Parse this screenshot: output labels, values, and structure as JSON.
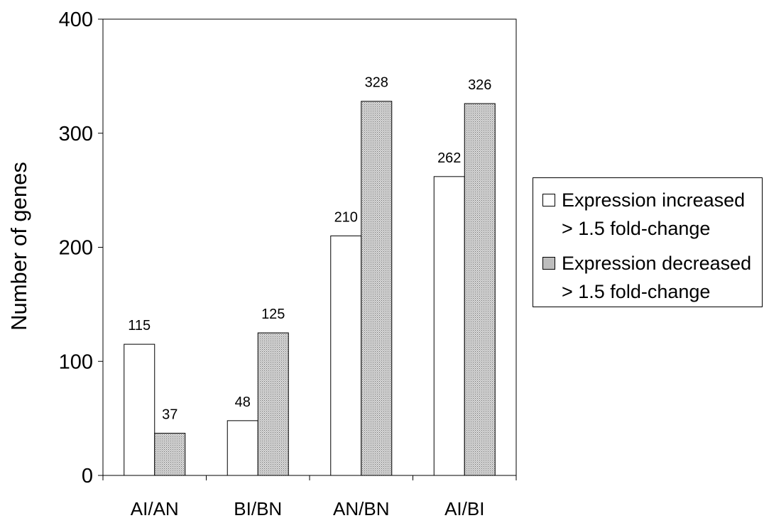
{
  "chart_data": {
    "type": "bar",
    "categories": [
      "AI/AN",
      "BI/BN",
      "AN/BN",
      "AI/BI"
    ],
    "series": [
      {
        "name": "Expression increased > 1.5 fold-change",
        "label_line1": "Expression increased",
        "label_line2": "> 1.5 fold-change",
        "values": [
          115,
          48,
          210,
          262
        ],
        "fill": "#ffffff",
        "pattern": "none"
      },
      {
        "name": "Expression decreased > 1.5 fold-change",
        "label_line1": "Expression decreased",
        "label_line2": "> 1.5 fold-change",
        "values": [
          37,
          125,
          328,
          326
        ],
        "fill": "#bdbdbd",
        "pattern": "dotted"
      }
    ],
    "ylabel": "Number of genes",
    "xlabel": "",
    "ylim": [
      0,
      400
    ],
    "yticks": [
      0,
      100,
      200,
      300,
      400
    ],
    "grid": false,
    "legend_position": "right",
    "data_labels": true
  }
}
